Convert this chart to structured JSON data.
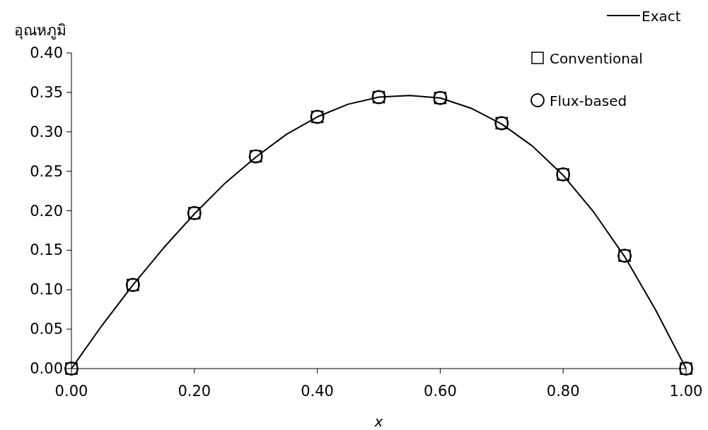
{
  "chart_data": {
    "type": "line",
    "ylabel": "อุณหภูมิ",
    "xlabel": "x",
    "xlim": [
      0,
      1
    ],
    "ylim": [
      0,
      0.4
    ],
    "xticks": [
      {
        "value": 0,
        "label": "0.00"
      },
      {
        "value": 0.2,
        "label": "0.20"
      },
      {
        "value": 0.4,
        "label": "0.40"
      },
      {
        "value": 0.6,
        "label": "0.60"
      },
      {
        "value": 0.8,
        "label": "0.80"
      },
      {
        "value": 1,
        "label": "1.00"
      }
    ],
    "yticks": [
      {
        "value": 0,
        "label": "0.00"
      },
      {
        "value": 0.05,
        "label": "0.05"
      },
      {
        "value": 0.1,
        "label": "0.10"
      },
      {
        "value": 0.15,
        "label": "0.15"
      },
      {
        "value": 0.2,
        "label": "0.20"
      },
      {
        "value": 0.25,
        "label": "0.25"
      },
      {
        "value": 0.3,
        "label": "0.30"
      },
      {
        "value": 0.35,
        "label": "0.35"
      },
      {
        "value": 0.4,
        "label": "0.40"
      }
    ],
    "legend": "top right",
    "grid": false,
    "series": [
      {
        "name": "Exact",
        "type": "line",
        "marker": "none",
        "line_style": "solid",
        "color": "#000000",
        "x": [
          0,
          0.05,
          0.1,
          0.15,
          0.2,
          0.25,
          0.3,
          0.35,
          0.4,
          0.45,
          0.5,
          0.55,
          0.6,
          0.65,
          0.7,
          0.75,
          0.8,
          0.85,
          0.9,
          0.95,
          1
        ],
        "values": [
          0,
          0.055,
          0.106,
          0.153,
          0.196,
          0.235,
          0.268,
          0.297,
          0.319,
          0.335,
          0.344,
          0.346,
          0.343,
          0.33,
          0.31,
          0.282,
          0.245,
          0.198,
          0.142,
          0.075,
          0
        ]
      },
      {
        "name": "Conventional",
        "type": "scatter",
        "marker": "square",
        "color": "#000000",
        "x": [
          0,
          0.1,
          0.2,
          0.3,
          0.4,
          0.5,
          0.6,
          0.7,
          0.8,
          0.9,
          1
        ],
        "values": [
          0,
          0.106,
          0.197,
          0.269,
          0.319,
          0.344,
          0.343,
          0.311,
          0.246,
          0.143,
          0
        ]
      },
      {
        "name": "Flux-based",
        "type": "scatter",
        "marker": "circle",
        "color": "#000000",
        "x": [
          0,
          0.1,
          0.2,
          0.3,
          0.4,
          0.5,
          0.6,
          0.7,
          0.8,
          0.9,
          1
        ],
        "values": [
          0,
          0.106,
          0.197,
          0.269,
          0.319,
          0.344,
          0.343,
          0.311,
          0.246,
          0.143,
          0
        ]
      }
    ]
  }
}
